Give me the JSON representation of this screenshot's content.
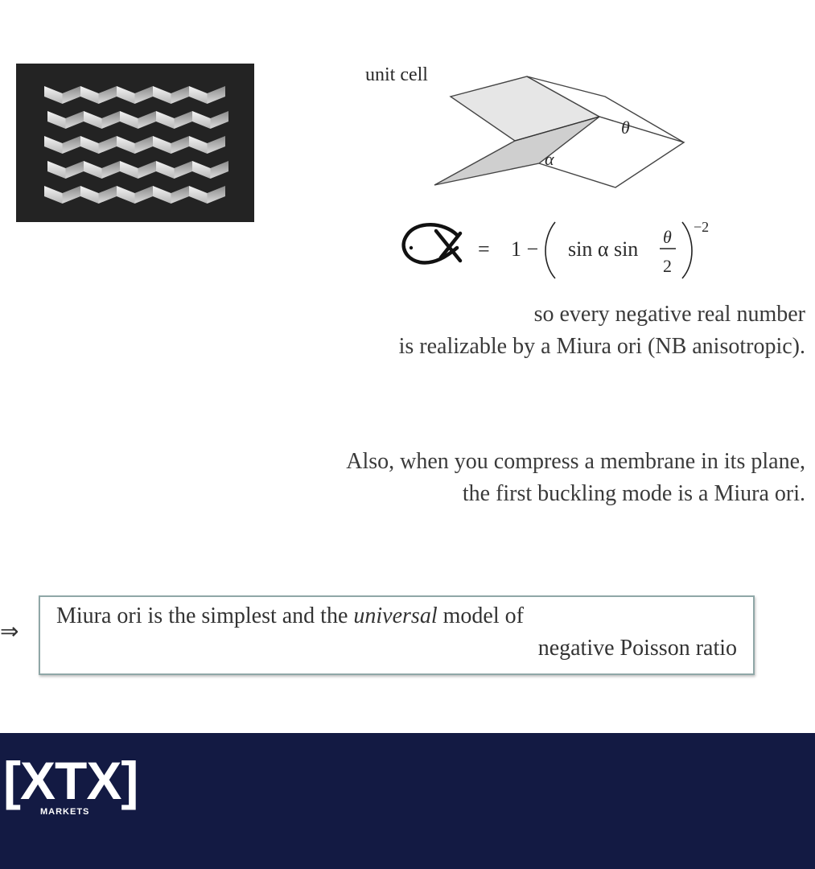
{
  "diagram": {
    "unit_cell_label": "unit cell",
    "theta_label": "θ",
    "alpha_label": "α"
  },
  "formula": {
    "equals": "=",
    "one_minus": "1 −",
    "sin_alpha": "sin α sin",
    "theta": "θ",
    "two": "2",
    "exponent": "−2"
  },
  "text_block_1": {
    "line1": "so every negative real number",
    "line2": "is realizable by a Miura ori (NB anisotropic)."
  },
  "text_block_2": {
    "line1": "Also, when you compress a membrane in its plane,",
    "line2": "the first buckling mode is a Miura ori."
  },
  "implies_symbol": "⇒",
  "conclusion_box": {
    "part1": "Miura ori is the simplest and the ",
    "emphasis": "universal",
    "part2": " model of",
    "line2": "negative Poisson ratio"
  },
  "footer": {
    "logo_main": "[XTX]",
    "logo_sub": "MARKETS",
    "background_color": "#131a43"
  }
}
